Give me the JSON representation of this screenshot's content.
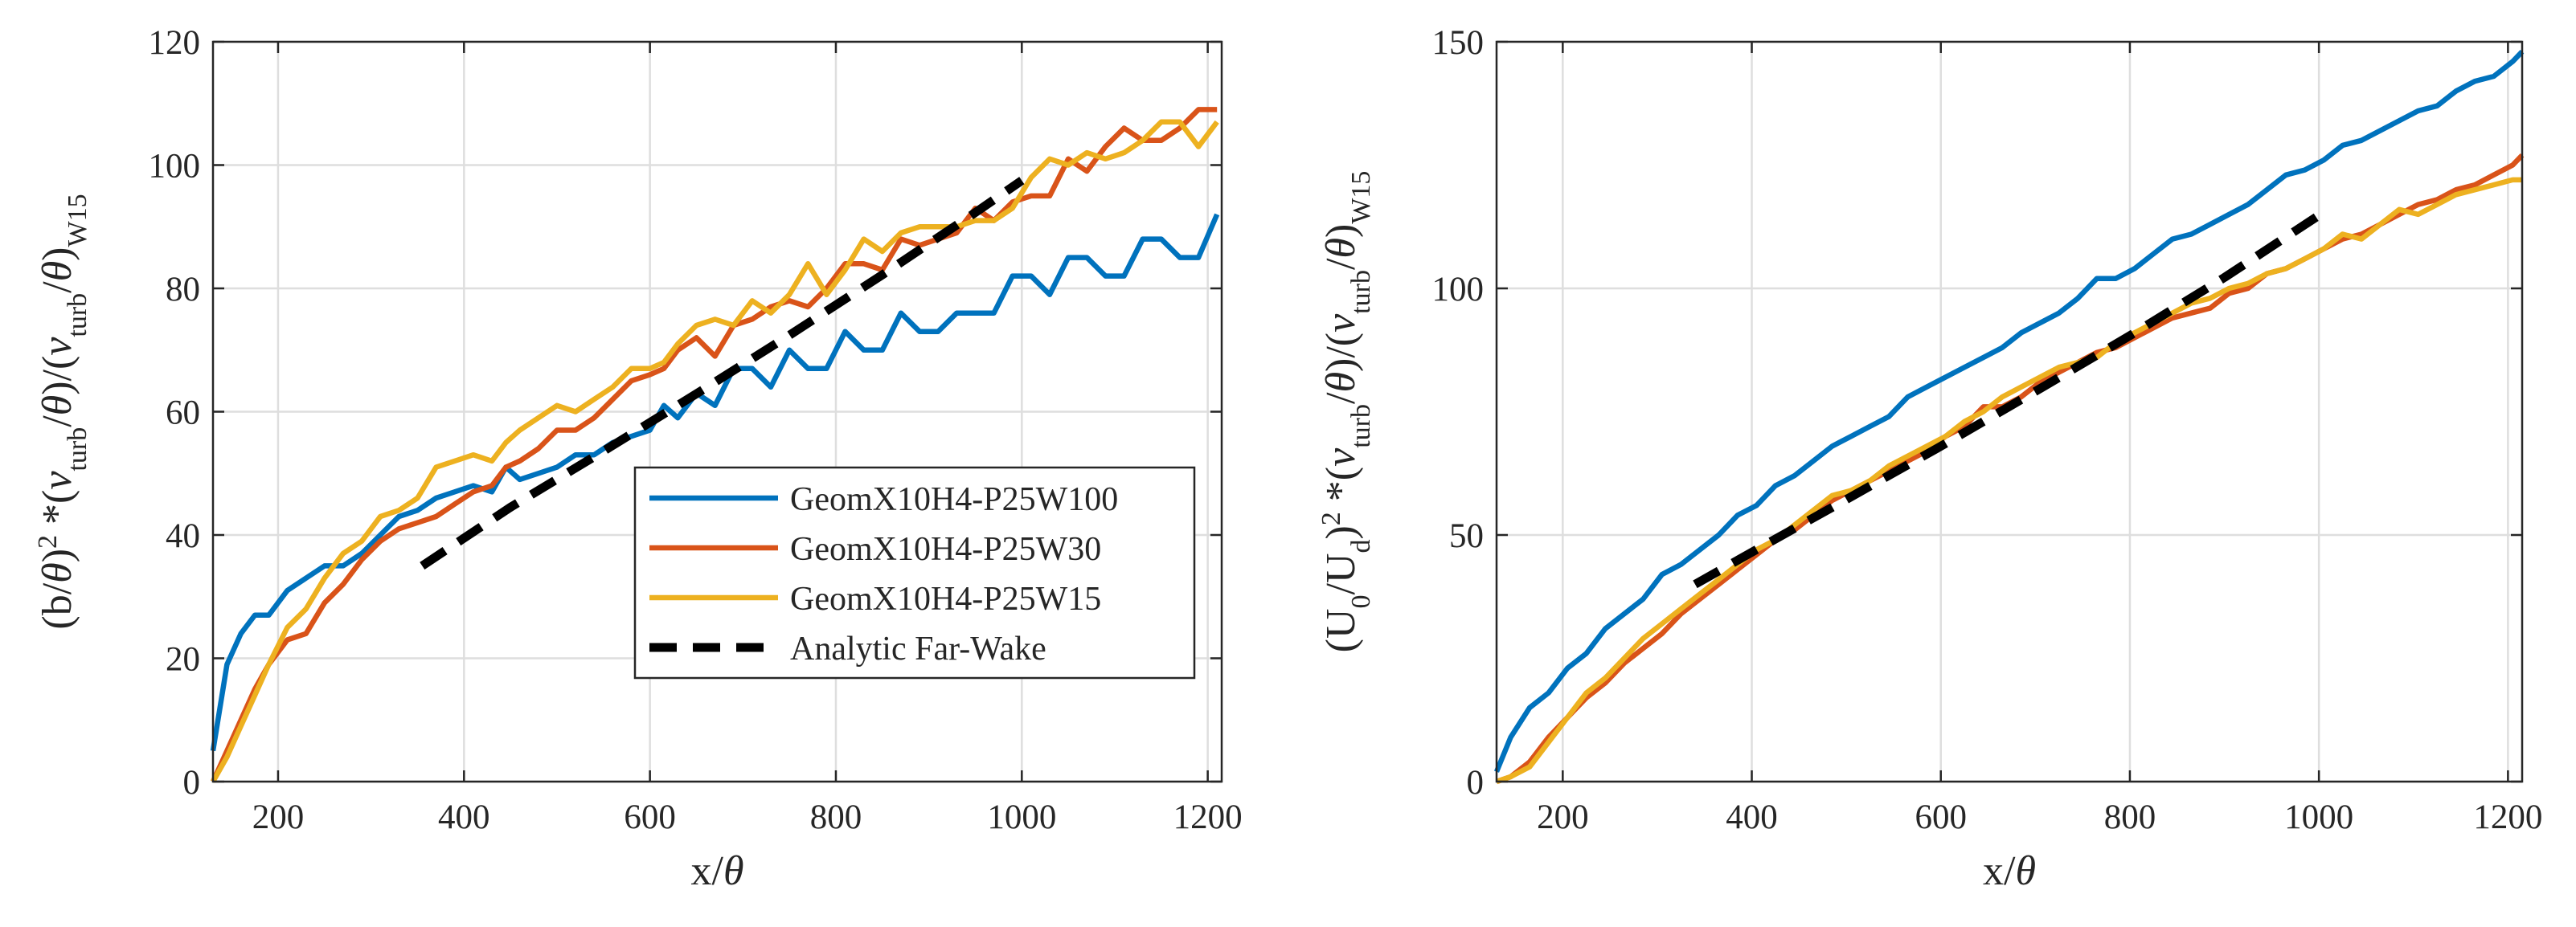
{
  "chart_data": [
    {
      "type": "line",
      "xlabel": "x/θ",
      "ylabel": "(b/θ)² *(ν_turb/θ)/(ν_turb/θ)_W15",
      "xlim": [
        130,
        1215
      ],
      "ylim": [
        0,
        120
      ],
      "xticks": [
        200,
        400,
        600,
        800,
        1000,
        1200
      ],
      "yticks": [
        0,
        20,
        40,
        60,
        80,
        100,
        120
      ],
      "grid": true,
      "legend": "lower-right",
      "series": [
        {
          "name": "GeomX10H4-P25W100",
          "color": "#0072BD",
          "style": "solid",
          "x": [
            130,
            145,
            160,
            175,
            190,
            210,
            230,
            250,
            270,
            290,
            310,
            330,
            350,
            370,
            390,
            410,
            430,
            445,
            460,
            480,
            500,
            520,
            540,
            560,
            580,
            600,
            615,
            630,
            650,
            670,
            690,
            710,
            730,
            750,
            770,
            790,
            810,
            830,
            850,
            870,
            890,
            910,
            930,
            950,
            970,
            990,
            1010,
            1030,
            1050,
            1070,
            1090,
            1110,
            1130,
            1150,
            1170,
            1190,
            1210
          ],
          "values": [
            5,
            19,
            24,
            27,
            27,
            31,
            33,
            35,
            35,
            37,
            40,
            43,
            44,
            46,
            47,
            48,
            47,
            51,
            49,
            50,
            51,
            53,
            53,
            55,
            56,
            57,
            61,
            59,
            63,
            61,
            67,
            67,
            64,
            70,
            67,
            67,
            73,
            70,
            70,
            76,
            73,
            73,
            76,
            76,
            76,
            82,
            82,
            79,
            85,
            85,
            82,
            82,
            88,
            88,
            85,
            85,
            92
          ]
        },
        {
          "name": "GeomX10H4-P25W30",
          "color": "#D95319",
          "style": "solid",
          "x": [
            130,
            145,
            160,
            175,
            190,
            210,
            230,
            250,
            270,
            290,
            310,
            330,
            350,
            370,
            390,
            410,
            430,
            445,
            460,
            480,
            500,
            520,
            540,
            560,
            580,
            600,
            615,
            630,
            650,
            670,
            690,
            710,
            730,
            750,
            770,
            790,
            810,
            830,
            850,
            870,
            890,
            910,
            930,
            950,
            970,
            990,
            1010,
            1030,
            1050,
            1070,
            1090,
            1110,
            1130,
            1150,
            1170,
            1190,
            1210
          ],
          "values": [
            0,
            5,
            10,
            15,
            19,
            23,
            24,
            29,
            32,
            36,
            39,
            41,
            42,
            43,
            45,
            47,
            48,
            51,
            52,
            54,
            57,
            57,
            59,
            62,
            65,
            66,
            67,
            70,
            72,
            69,
            74,
            75,
            77,
            78,
            77,
            80,
            84,
            84,
            83,
            88,
            87,
            88,
            89,
            93,
            91,
            94,
            95,
            95,
            101,
            99,
            103,
            106,
            104,
            104,
            106,
            109,
            109
          ]
        },
        {
          "name": "GeomX10H4-P25W15",
          "color": "#EDB120",
          "style": "solid",
          "x": [
            130,
            145,
            160,
            175,
            190,
            210,
            230,
            250,
            270,
            290,
            310,
            330,
            350,
            370,
            390,
            410,
            430,
            445,
            460,
            480,
            500,
            520,
            540,
            560,
            580,
            600,
            615,
            630,
            650,
            670,
            690,
            710,
            730,
            750,
            770,
            790,
            810,
            830,
            850,
            870,
            890,
            910,
            930,
            950,
            970,
            990,
            1010,
            1030,
            1050,
            1070,
            1090,
            1110,
            1130,
            1150,
            1170,
            1190,
            1210
          ],
          "values": [
            0,
            4,
            9,
            14,
            19,
            25,
            28,
            33,
            37,
            39,
            43,
            44,
            46,
            51,
            52,
            53,
            52,
            55,
            57,
            59,
            61,
            60,
            62,
            64,
            67,
            67,
            68,
            71,
            74,
            75,
            74,
            78,
            76,
            79,
            84,
            79,
            83,
            88,
            86,
            89,
            90,
            90,
            90,
            91,
            91,
            93,
            98,
            101,
            100,
            102,
            101,
            102,
            104,
            107,
            107,
            103,
            107
          ]
        },
        {
          "name": "Analytic Far-Wake",
          "color": "#000000",
          "style": "dashed",
          "x": [
            355,
            450,
            550,
            650,
            750,
            850,
            950,
            1000
          ],
          "values": [
            35,
            44.5,
            53.6,
            62.9,
            72.4,
            82.2,
            92.3,
            97.5
          ]
        }
      ]
    },
    {
      "type": "line",
      "xlabel": "x/θ",
      "ylabel": "(U₀/U_d)² *(ν_turb/θ)/(ν_turb/θ)_W15",
      "xlim": [
        130,
        1215
      ],
      "ylim": [
        0,
        150
      ],
      "xticks": [
        200,
        400,
        600,
        800,
        1000,
        1200
      ],
      "yticks": [
        0,
        50,
        100,
        150
      ],
      "grid": true,
      "series": [
        {
          "name": "GeomX10H4-P25W100",
          "color": "#0072BD",
          "style": "solid",
          "x": [
            130,
            145,
            165,
            185,
            205,
            225,
            245,
            265,
            285,
            305,
            325,
            345,
            365,
            385,
            405,
            425,
            445,
            465,
            485,
            505,
            525,
            545,
            565,
            585,
            605,
            625,
            645,
            665,
            685,
            705,
            725,
            745,
            765,
            785,
            805,
            825,
            845,
            865,
            885,
            905,
            925,
            945,
            965,
            985,
            1005,
            1025,
            1045,
            1065,
            1085,
            1105,
            1125,
            1145,
            1165,
            1185,
            1205,
            1215
          ],
          "values": [
            2,
            9,
            15,
            18,
            23,
            26,
            31,
            34,
            37,
            42,
            44,
            47,
            50,
            54,
            56,
            60,
            62,
            65,
            68,
            70,
            72,
            74,
            78,
            80,
            82,
            84,
            86,
            88,
            91,
            93,
            95,
            98,
            102,
            102,
            104,
            107,
            110,
            111,
            113,
            115,
            117,
            120,
            123,
            124,
            126,
            129,
            130,
            132,
            134,
            136,
            137,
            140,
            142,
            143,
            146,
            148
          ]
        },
        {
          "name": "GeomX10H4-P25W30",
          "color": "#D95319",
          "style": "solid",
          "x": [
            130,
            145,
            165,
            185,
            205,
            225,
            245,
            265,
            285,
            305,
            325,
            345,
            365,
            385,
            405,
            425,
            445,
            465,
            485,
            505,
            525,
            545,
            565,
            585,
            605,
            625,
            645,
            665,
            685,
            705,
            725,
            745,
            765,
            785,
            805,
            825,
            845,
            865,
            885,
            905,
            925,
            945,
            965,
            985,
            1005,
            1025,
            1045,
            1065,
            1085,
            1105,
            1125,
            1145,
            1165,
            1185,
            1205,
            1215
          ],
          "values": [
            0,
            1,
            4,
            9,
            13,
            17,
            20,
            24,
            27,
            30,
            34,
            37,
            40,
            43,
            46,
            49,
            51,
            54,
            57,
            59,
            61,
            63,
            65,
            67,
            70,
            72,
            76,
            76,
            78,
            81,
            83,
            85,
            87,
            88,
            90,
            92,
            94,
            95,
            96,
            99,
            100,
            103,
            104,
            106,
            108,
            110,
            111,
            113,
            115,
            117,
            118,
            120,
            121,
            123,
            125,
            127
          ]
        },
        {
          "name": "GeomX10H4-P25W15",
          "color": "#EDB120",
          "style": "solid",
          "x": [
            130,
            145,
            165,
            185,
            205,
            225,
            245,
            265,
            285,
            305,
            325,
            345,
            365,
            385,
            405,
            425,
            445,
            465,
            485,
            505,
            525,
            545,
            565,
            585,
            605,
            625,
            645,
            665,
            685,
            705,
            725,
            745,
            765,
            785,
            805,
            825,
            845,
            865,
            885,
            905,
            925,
            945,
            965,
            985,
            1005,
            1025,
            1045,
            1065,
            1085,
            1105,
            1125,
            1145,
            1165,
            1185,
            1205,
            1215
          ],
          "values": [
            0,
            1,
            3,
            8,
            13,
            18,
            21,
            25,
            29,
            32,
            35,
            38,
            41,
            44,
            47,
            49,
            52,
            55,
            58,
            59,
            61,
            64,
            66,
            68,
            70,
            73,
            75,
            78,
            80,
            82,
            84,
            85,
            86,
            89,
            91,
            93,
            95,
            97,
            98,
            100,
            101,
            103,
            104,
            106,
            108,
            111,
            110,
            113,
            116,
            115,
            117,
            119,
            120,
            121,
            122,
            122
          ]
        },
        {
          "name": "Analytic Far-Wake",
          "color": "#000000",
          "style": "dashed",
          "x": [
            340,
            400,
            500,
            600,
            700,
            800,
            900,
            1000
          ],
          "values": [
            40,
            46.5,
            57.2,
            68,
            79.1,
            90.4,
            102.2,
            114.8
          ]
        }
      ]
    }
  ]
}
